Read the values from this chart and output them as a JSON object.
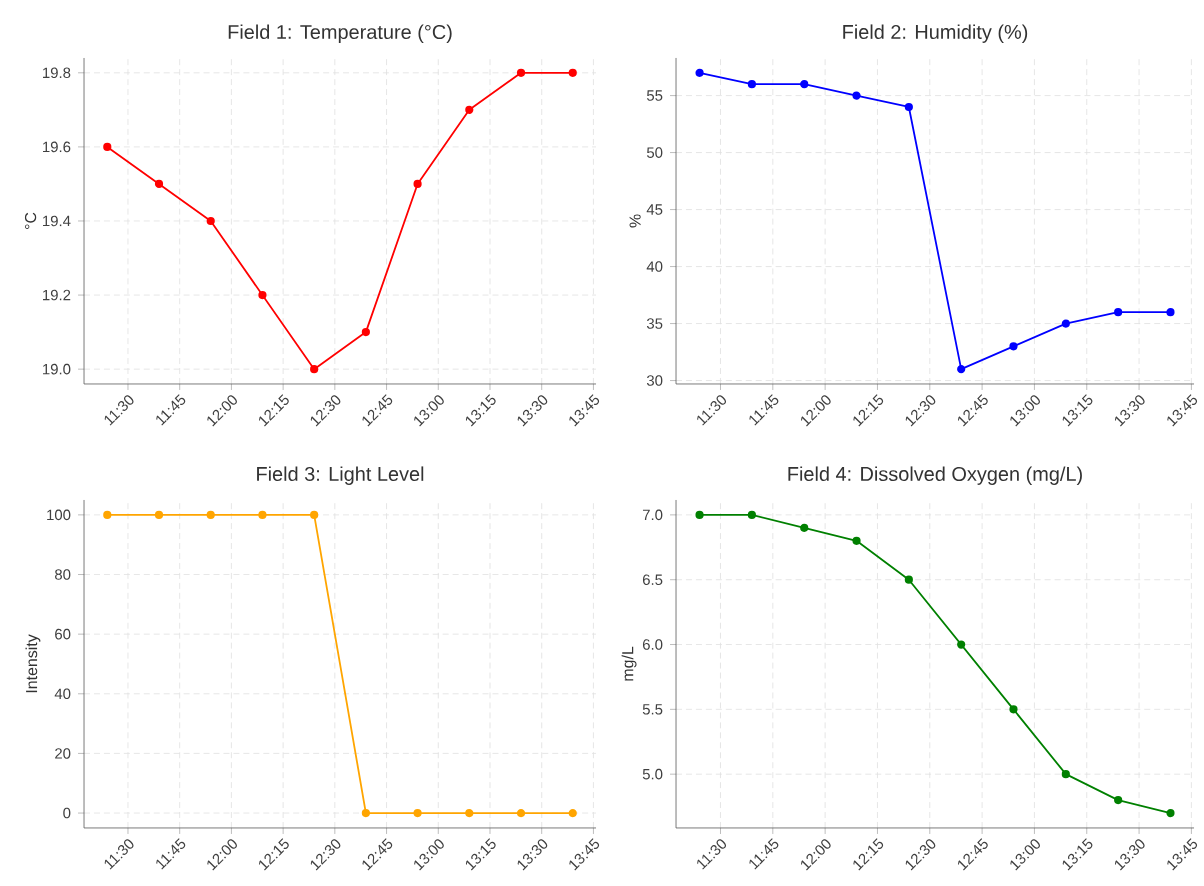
{
  "chart_data": [
    {
      "type": "line",
      "title": "Field 1: Temperature (°C)",
      "ylabel": "°C",
      "color": "#ff0000",
      "marker": "circle",
      "grid": true,
      "x": [
        11.4,
        11.65,
        11.9,
        12.15,
        12.4,
        12.65,
        12.9,
        13.15,
        13.4,
        13.65
      ],
      "values": [
        19.6,
        19.5,
        19.4,
        19.2,
        19.0,
        19.1,
        19.5,
        19.7,
        19.8,
        19.8
      ],
      "xlim": [
        11.2875,
        13.7625
      ],
      "ylim": [
        18.96,
        19.84
      ],
      "xticks": [
        {
          "value": 11.5,
          "label": "11:30"
        },
        {
          "value": 11.75,
          "label": "11:45"
        },
        {
          "value": 12,
          "label": "12:00"
        },
        {
          "value": 12.25,
          "label": "12:15"
        },
        {
          "value": 12.5,
          "label": "12:30"
        },
        {
          "value": 12.75,
          "label": "12:45"
        },
        {
          "value": 13,
          "label": "13:00"
        },
        {
          "value": 13.25,
          "label": "13:15"
        },
        {
          "value": 13.5,
          "label": "13:30"
        },
        {
          "value": 13.75,
          "label": "13:45"
        }
      ],
      "yticks": [
        {
          "value": 19.0,
          "label": "19.0"
        },
        {
          "value": 19.2,
          "label": "19.2"
        },
        {
          "value": 19.4,
          "label": "19.4"
        },
        {
          "value": 19.6,
          "label": "19.6"
        },
        {
          "value": 19.8,
          "label": "19.8"
        }
      ]
    },
    {
      "type": "line",
      "title": "Field 2: Humidity (%)",
      "ylabel": "%",
      "color": "#0000ff",
      "marker": "circle",
      "grid": true,
      "x": [
        11.4,
        11.65,
        11.9,
        12.15,
        12.4,
        12.65,
        12.9,
        13.15,
        13.4,
        13.65
      ],
      "values": [
        57,
        56,
        56,
        55,
        54,
        31,
        33,
        35,
        36,
        36
      ],
      "xlim": [
        11.2875,
        13.7625
      ],
      "ylim": [
        29.7,
        58.3
      ],
      "xticks": [
        {
          "value": 11.5,
          "label": "11:30"
        },
        {
          "value": 11.75,
          "label": "11:45"
        },
        {
          "value": 12,
          "label": "12:00"
        },
        {
          "value": 12.25,
          "label": "12:15"
        },
        {
          "value": 12.5,
          "label": "12:30"
        },
        {
          "value": 12.75,
          "label": "12:45"
        },
        {
          "value": 13,
          "label": "13:00"
        },
        {
          "value": 13.25,
          "label": "13:15"
        },
        {
          "value": 13.5,
          "label": "13:30"
        },
        {
          "value": 13.75,
          "label": "13:45"
        }
      ],
      "yticks": [
        30,
        35,
        40,
        45,
        50,
        55
      ]
    },
    {
      "type": "line",
      "title": "Field 3: Light Level",
      "ylabel": "Intensity",
      "color": "#ffa500",
      "marker": "circle",
      "grid": true,
      "x": [
        11.4,
        11.65,
        11.9,
        12.15,
        12.4,
        12.65,
        12.9,
        13.15,
        13.4,
        13.65
      ],
      "values": [
        100,
        100,
        100,
        100,
        100,
        0,
        0,
        0,
        0,
        0
      ],
      "xlim": [
        11.2875,
        13.7625
      ],
      "ylim": [
        -5,
        105
      ],
      "xticks": [
        {
          "value": 11.5,
          "label": "11:30"
        },
        {
          "value": 11.75,
          "label": "11:45"
        },
        {
          "value": 12,
          "label": "12:00"
        },
        {
          "value": 12.25,
          "label": "12:15"
        },
        {
          "value": 12.5,
          "label": "12:30"
        },
        {
          "value": 12.75,
          "label": "12:45"
        },
        {
          "value": 13,
          "label": "13:00"
        },
        {
          "value": 13.25,
          "label": "13:15"
        },
        {
          "value": 13.5,
          "label": "13:30"
        },
        {
          "value": 13.75,
          "label": "13:45"
        }
      ],
      "yticks": [
        0,
        20,
        40,
        60,
        80,
        100
      ]
    },
    {
      "type": "line",
      "title": "Field 4: Dissolved Oxygen (mg/L)",
      "ylabel": "mg/L",
      "color": "#008000",
      "marker": "circle",
      "grid": true,
      "x": [
        11.4,
        11.65,
        11.9,
        12.15,
        12.4,
        12.65,
        12.9,
        13.15,
        13.4,
        13.65
      ],
      "values": [
        7.0,
        7.0,
        6.9,
        6.8,
        6.5,
        6.0,
        5.5,
        5.0,
        4.8,
        4.7
      ],
      "xlim": [
        11.2875,
        13.7625
      ],
      "ylim": [
        4.585,
        7.115
      ],
      "xticks": [
        {
          "value": 11.5,
          "label": "11:30"
        },
        {
          "value": 11.75,
          "label": "11:45"
        },
        {
          "value": 12,
          "label": "12:00"
        },
        {
          "value": 12.25,
          "label": "12:15"
        },
        {
          "value": 12.5,
          "label": "12:30"
        },
        {
          "value": 12.75,
          "label": "12:45"
        },
        {
          "value": 13,
          "label": "13:00"
        },
        {
          "value": 13.25,
          "label": "13:15"
        },
        {
          "value": 13.5,
          "label": "13:30"
        },
        {
          "value": 13.75,
          "label": "13:45"
        }
      ],
      "yticks": [
        {
          "value": 5.0,
          "label": "5.0"
        },
        {
          "value": 5.5,
          "label": "5.5"
        },
        {
          "value": 6.0,
          "label": "6.0"
        },
        {
          "value": 6.5,
          "label": "6.5"
        },
        {
          "value": 7.0,
          "label": "7.0"
        }
      ]
    }
  ]
}
